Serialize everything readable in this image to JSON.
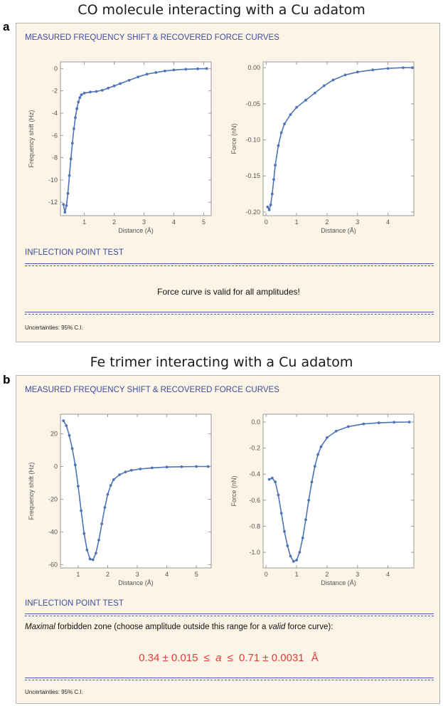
{
  "panel_a": {
    "letter": "a",
    "title": "CO molecule interacting with a Cu adatom",
    "section1": "MEASURED FREQUENCY SHIFT  &  RECOVERED FORCE CURVES",
    "section2": "INFLECTION POINT TEST",
    "message": "Force curve is valid for all amplitudes!",
    "uncertainties": "Uncertainties: 95% C.I."
  },
  "panel_b": {
    "letter": "b",
    "title": "Fe trimer interacting with a Cu adatom",
    "section1": "MEASURED FREQUENCY SHIFT  &  RECOVERED FORCE CURVES",
    "section2": "INFLECTION POINT TEST",
    "message_italic": "Maximal",
    "message_a": " forbidden zone (choose amplitude outside this range for a ",
    "message_italic2": "valid",
    "message_b": " force curve):",
    "result_low": "0.34 ± 0.015",
    "result_le": "≤",
    "result_var": "a",
    "result_high": "0.71 ± 0.0031",
    "result_unit": "Å",
    "uncertainties": "Uncertainties: 95% C.I."
  },
  "colors": {
    "series": "#4f74b5",
    "frame": "#9a9a9a",
    "heading": "#3c4d9e",
    "result": "#e53a3a"
  },
  "chart_data": [
    {
      "type": "scatter",
      "xlabel": "Distance (Å)",
      "ylabel": "Frequency shift (Hz)",
      "xlim": [
        0.2,
        5.25
      ],
      "ylim": [
        -13.2,
        0.6
      ],
      "xticks": [
        1,
        2,
        3,
        4,
        5
      ],
      "yticks": [
        0,
        -2,
        -4,
        -6,
        -8,
        -10,
        -12
      ],
      "xtick_labels": [
        "1",
        "2",
        "3",
        "4",
        "5"
      ],
      "ytick_labels": [
        "0",
        "-2",
        "-4",
        "-6",
        "-8",
        "-10",
        "-12"
      ],
      "points": [
        [
          0.3,
          -12.2
        ],
        [
          0.35,
          -12.9
        ],
        [
          0.4,
          -12.3
        ],
        [
          0.45,
          -11.2
        ],
        [
          0.5,
          -9.6
        ],
        [
          0.55,
          -8.1
        ],
        [
          0.6,
          -6.7
        ],
        [
          0.65,
          -5.4
        ],
        [
          0.7,
          -4.4
        ],
        [
          0.75,
          -3.6
        ],
        [
          0.8,
          -3.0
        ],
        [
          0.85,
          -2.6
        ],
        [
          0.9,
          -2.35
        ],
        [
          1.0,
          -2.2
        ],
        [
          1.2,
          -2.1
        ],
        [
          1.4,
          -2.05
        ],
        [
          1.6,
          -1.95
        ],
        [
          1.8,
          -1.75
        ],
        [
          2.0,
          -1.55
        ],
        [
          2.2,
          -1.35
        ],
        [
          2.5,
          -1.05
        ],
        [
          2.8,
          -0.75
        ],
        [
          3.1,
          -0.5
        ],
        [
          3.4,
          -0.35
        ],
        [
          3.7,
          -0.22
        ],
        [
          4.0,
          -0.12
        ],
        [
          4.4,
          -0.06
        ],
        [
          4.8,
          -0.02
        ],
        [
          5.1,
          0.0
        ]
      ]
    },
    {
      "type": "scatter",
      "xlabel": "Distance (Å)",
      "ylabel": "Force (nN)",
      "xlim": [
        -0.1,
        4.85
      ],
      "ylim": [
        -0.205,
        0.008
      ],
      "xticks": [
        0,
        1,
        2,
        3,
        4
      ],
      "yticks": [
        0.0,
        -0.05,
        -0.1,
        -0.15,
        -0.2
      ],
      "xtick_labels": [
        "0",
        "1",
        "2",
        "3",
        "4"
      ],
      "ytick_labels": [
        "0.00",
        "-0.05",
        "-0.10",
        "-0.15",
        "-0.20"
      ],
      "points": [
        [
          0.05,
          -0.193
        ],
        [
          0.1,
          -0.197
        ],
        [
          0.15,
          -0.19
        ],
        [
          0.2,
          -0.175
        ],
        [
          0.25,
          -0.155
        ],
        [
          0.3,
          -0.135
        ],
        [
          0.4,
          -0.108
        ],
        [
          0.5,
          -0.09
        ],
        [
          0.6,
          -0.078
        ],
        [
          0.8,
          -0.065
        ],
        [
          1.0,
          -0.055
        ],
        [
          1.3,
          -0.045
        ],
        [
          1.6,
          -0.035
        ],
        [
          1.9,
          -0.025
        ],
        [
          2.2,
          -0.017
        ],
        [
          2.6,
          -0.01
        ],
        [
          3.0,
          -0.006
        ],
        [
          3.5,
          -0.003
        ],
        [
          4.0,
          -0.001
        ],
        [
          4.5,
          0.0
        ],
        [
          4.8,
          0.0
        ]
      ]
    },
    {
      "type": "scatter",
      "xlabel": "Distance (Å)",
      "ylabel": "Frequency shift (Hz)",
      "xlim": [
        0.4,
        5.5
      ],
      "ylim": [
        -62,
        32
      ],
      "xticks": [
        1,
        2,
        3,
        4,
        5
      ],
      "yticks": [
        20,
        0,
        -20,
        -40,
        -60
      ],
      "xtick_labels": [
        "1",
        "2",
        "3",
        "4",
        "5"
      ],
      "ytick_labels": [
        "20",
        "0",
        "-20",
        "-40",
        "-60"
      ],
      "points": [
        [
          0.5,
          28
        ],
        [
          0.6,
          25
        ],
        [
          0.7,
          19
        ],
        [
          0.8,
          11
        ],
        [
          0.9,
          1
        ],
        [
          1.0,
          -12
        ],
        [
          1.1,
          -27
        ],
        [
          1.2,
          -41
        ],
        [
          1.3,
          -51
        ],
        [
          1.4,
          -56.5
        ],
        [
          1.5,
          -57
        ],
        [
          1.6,
          -53
        ],
        [
          1.7,
          -45
        ],
        [
          1.8,
          -35
        ],
        [
          1.9,
          -25
        ],
        [
          2.0,
          -17
        ],
        [
          2.1,
          -11.5
        ],
        [
          2.2,
          -8
        ],
        [
          2.4,
          -5
        ],
        [
          2.6,
          -3.3
        ],
        [
          2.8,
          -2.3
        ],
        [
          3.1,
          -1.5
        ],
        [
          3.5,
          -0.8
        ],
        [
          4.0,
          -0.3
        ],
        [
          4.5,
          -0.1
        ],
        [
          5.0,
          0.0
        ],
        [
          5.4,
          0.0
        ]
      ]
    },
    {
      "type": "scatter",
      "xlabel": "Distance (Å)",
      "ylabel": "Force (nN)",
      "xlim": [
        -0.1,
        4.85
      ],
      "ylim": [
        -1.12,
        0.06
      ],
      "xticks": [
        0,
        1,
        2,
        3,
        4
      ],
      "yticks": [
        0.0,
        -0.2,
        -0.4,
        -0.6,
        -0.8,
        -1.0
      ],
      "xtick_labels": [
        "0",
        "1",
        "2",
        "3",
        "4"
      ],
      "ytick_labels": [
        "0.0",
        "-0.2",
        "-0.4",
        "-0.6",
        "-0.8",
        "-1.0"
      ],
      "points": [
        [
          0.1,
          -0.44
        ],
        [
          0.2,
          -0.43
        ],
        [
          0.3,
          -0.46
        ],
        [
          0.4,
          -0.56
        ],
        [
          0.5,
          -0.7
        ],
        [
          0.6,
          -0.84
        ],
        [
          0.7,
          -0.95
        ],
        [
          0.8,
          -1.03
        ],
        [
          0.9,
          -1.07
        ],
        [
          1.0,
          -1.06
        ],
        [
          1.1,
          -1.0
        ],
        [
          1.2,
          -0.89
        ],
        [
          1.3,
          -0.75
        ],
        [
          1.4,
          -0.6
        ],
        [
          1.5,
          -0.46
        ],
        [
          1.6,
          -0.34
        ],
        [
          1.7,
          -0.25
        ],
        [
          1.8,
          -0.19
        ],
        [
          2.0,
          -0.12
        ],
        [
          2.3,
          -0.07
        ],
        [
          2.7,
          -0.035
        ],
        [
          3.2,
          -0.015
        ],
        [
          3.7,
          -0.006
        ],
        [
          4.2,
          -0.002
        ],
        [
          4.7,
          0.0
        ]
      ]
    }
  ]
}
